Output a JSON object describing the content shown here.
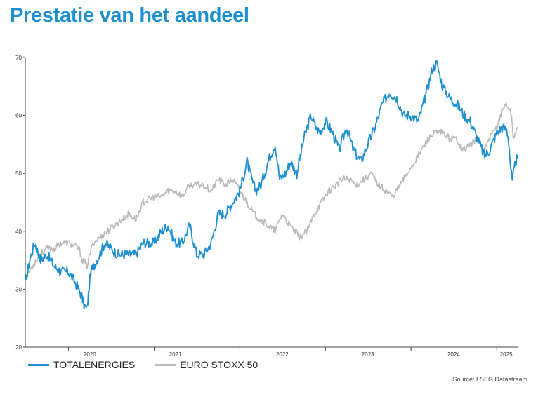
{
  "title": "Prestatie van het aandeel",
  "source": "Source: LSEG Datastream",
  "colors": {
    "title": "#1b8fd0",
    "total": "#1b8fd0",
    "stoxx": "#b9b9b9",
    "axis": "#444444"
  },
  "chart_data": {
    "type": "line",
    "title": "",
    "xlabel": "",
    "ylabel": "",
    "xlim": [
      "2019-07-01",
      "2025-03-31"
    ],
    "ylim": [
      20,
      70
    ],
    "yticks": [
      20,
      30,
      40,
      50,
      60,
      70
    ],
    "year_labels": [
      {
        "label": "2020",
        "date": "2020-04-01"
      },
      {
        "label": "2021",
        "date": "2021-04-01"
      },
      {
        "label": "2022",
        "date": "2022-07-01"
      },
      {
        "label": "2023",
        "date": "2023-07-01"
      },
      {
        "label": "2024",
        "date": "2024-07-01"
      },
      {
        "label": "2025",
        "date": "2025-02-10"
      }
    ],
    "year_boundaries": [
      "2020-01-01",
      "2021-01-01",
      "2022-01-01",
      "2023-01-01",
      "2024-01-01",
      "2025-01-01"
    ],
    "legend_position": "bottom-left",
    "series": [
      {
        "name": "TOTALENERGIES",
        "color": "#1b8fd0",
        "points": [
          [
            "2019-07-01",
            31
          ],
          [
            "2019-07-20",
            35
          ],
          [
            "2019-08-10",
            38
          ],
          [
            "2019-09-05",
            35
          ],
          [
            "2019-10-01",
            36
          ],
          [
            "2019-11-01",
            34
          ],
          [
            "2019-12-01",
            33
          ],
          [
            "2020-01-01",
            33
          ],
          [
            "2020-02-01",
            31
          ],
          [
            "2020-02-25",
            29
          ],
          [
            "2020-03-10",
            27
          ],
          [
            "2020-03-20",
            26.5
          ],
          [
            "2020-04-05",
            33
          ],
          [
            "2020-05-01",
            35
          ],
          [
            "2020-06-05",
            38
          ],
          [
            "2020-07-01",
            37
          ],
          [
            "2020-08-01",
            36
          ],
          [
            "2020-09-01",
            36
          ],
          [
            "2020-10-15",
            36
          ],
          [
            "2020-11-15",
            38
          ],
          [
            "2021-01-01",
            38
          ],
          [
            "2021-02-01",
            40
          ],
          [
            "2021-03-01",
            41
          ],
          [
            "2021-04-01",
            38
          ],
          [
            "2021-05-01",
            38
          ],
          [
            "2021-06-01",
            41
          ],
          [
            "2021-07-01",
            36
          ],
          [
            "2021-08-01",
            36
          ],
          [
            "2021-09-01",
            38
          ],
          [
            "2021-10-01",
            43
          ],
          [
            "2021-11-01",
            43
          ],
          [
            "2021-12-01",
            45
          ],
          [
            "2022-01-01",
            47
          ],
          [
            "2022-02-01",
            52
          ],
          [
            "2022-02-20",
            49
          ],
          [
            "2022-03-10",
            47
          ],
          [
            "2022-04-01",
            48
          ],
          [
            "2022-05-01",
            52
          ],
          [
            "2022-05-20",
            54
          ],
          [
            "2022-06-01",
            55
          ],
          [
            "2022-06-20",
            49
          ],
          [
            "2022-07-15",
            50
          ],
          [
            "2022-08-05",
            52
          ],
          [
            "2022-09-01",
            50
          ],
          [
            "2022-10-01",
            56
          ],
          [
            "2022-11-01",
            60
          ],
          [
            "2022-11-20",
            58
          ],
          [
            "2022-12-10",
            57
          ],
          [
            "2023-01-01",
            59
          ],
          [
            "2023-02-01",
            57
          ],
          [
            "2023-03-01",
            54
          ],
          [
            "2023-04-01",
            58
          ],
          [
            "2023-05-01",
            54
          ],
          [
            "2023-06-01",
            52
          ],
          [
            "2023-07-01",
            55
          ],
          [
            "2023-08-01",
            58
          ],
          [
            "2023-09-01",
            62
          ],
          [
            "2023-10-01",
            64
          ],
          [
            "2023-11-01",
            63
          ],
          [
            "2023-12-01",
            60
          ],
          [
            "2024-01-01",
            60
          ],
          [
            "2024-02-01",
            59
          ],
          [
            "2024-03-01",
            63
          ],
          [
            "2024-04-01",
            68
          ],
          [
            "2024-04-20",
            69
          ],
          [
            "2024-05-15",
            65
          ],
          [
            "2024-06-15",
            63
          ],
          [
            "2024-07-15",
            62
          ],
          [
            "2024-08-15",
            60
          ],
          [
            "2024-09-10",
            59
          ],
          [
            "2024-10-10",
            56
          ],
          [
            "2024-11-10",
            53
          ],
          [
            "2024-12-01",
            54
          ],
          [
            "2025-01-01",
            57
          ],
          [
            "2025-01-25",
            58
          ],
          [
            "2025-02-12",
            57.5
          ],
          [
            "2025-02-20",
            56
          ],
          [
            "2025-03-01",
            51
          ],
          [
            "2025-03-08",
            48.5
          ],
          [
            "2025-03-14",
            50
          ],
          [
            "2025-03-22",
            52
          ],
          [
            "2025-03-30",
            52.5
          ]
        ]
      },
      {
        "name": "EURO STOXX 50",
        "color": "#b9b9b9",
        "points": [
          [
            "2019-07-01",
            32
          ],
          [
            "2019-08-01",
            34
          ],
          [
            "2019-09-01",
            36
          ],
          [
            "2019-10-01",
            37
          ],
          [
            "2019-11-01",
            37
          ],
          [
            "2019-12-01",
            38
          ],
          [
            "2020-01-01",
            38
          ],
          [
            "2020-02-15",
            37
          ],
          [
            "2020-03-01",
            35
          ],
          [
            "2020-03-20",
            34
          ],
          [
            "2020-04-15",
            38
          ],
          [
            "2020-05-15",
            39
          ],
          [
            "2020-06-15",
            40
          ],
          [
            "2020-07-15",
            41
          ],
          [
            "2020-08-15",
            42
          ],
          [
            "2020-09-15",
            43
          ],
          [
            "2020-10-15",
            42
          ],
          [
            "2020-11-15",
            45
          ],
          [
            "2021-01-01",
            46
          ],
          [
            "2021-02-01",
            46
          ],
          [
            "2021-03-01",
            47
          ],
          [
            "2021-04-01",
            47
          ],
          [
            "2021-05-01",
            46
          ],
          [
            "2021-06-01",
            48
          ],
          [
            "2021-07-01",
            48
          ],
          [
            "2021-08-01",
            48
          ],
          [
            "2021-09-01",
            47
          ],
          [
            "2021-10-01",
            49
          ],
          [
            "2021-11-01",
            48
          ],
          [
            "2021-12-01",
            49
          ],
          [
            "2022-01-01",
            47
          ],
          [
            "2022-02-01",
            45
          ],
          [
            "2022-03-01",
            43
          ],
          [
            "2022-04-01",
            42
          ],
          [
            "2022-05-01",
            41
          ],
          [
            "2022-06-01",
            40
          ],
          [
            "2022-07-01",
            43
          ],
          [
            "2022-08-01",
            41
          ],
          [
            "2022-09-15",
            39
          ],
          [
            "2022-10-15",
            40
          ],
          [
            "2022-11-15",
            43
          ],
          [
            "2022-12-15",
            45
          ],
          [
            "2023-01-15",
            47
          ],
          [
            "2023-02-15",
            48
          ],
          [
            "2023-03-15",
            49
          ],
          [
            "2023-04-15",
            49
          ],
          [
            "2023-05-15",
            48
          ],
          [
            "2023-06-15",
            49
          ],
          [
            "2023-07-15",
            50
          ],
          [
            "2023-08-15",
            48
          ],
          [
            "2023-09-15",
            47
          ],
          [
            "2023-10-15",
            46
          ],
          [
            "2023-11-15",
            48
          ],
          [
            "2023-12-15",
            50
          ],
          [
            "2024-01-15",
            52
          ],
          [
            "2024-02-15",
            54
          ],
          [
            "2024-03-15",
            56
          ],
          [
            "2024-04-15",
            57
          ],
          [
            "2024-05-15",
            57
          ],
          [
            "2024-06-15",
            56
          ],
          [
            "2024-07-15",
            56
          ],
          [
            "2024-08-10",
            54
          ],
          [
            "2024-09-10",
            55
          ],
          [
            "2024-10-10",
            56
          ],
          [
            "2024-11-10",
            54
          ],
          [
            "2024-12-01",
            56
          ],
          [
            "2025-01-01",
            58
          ],
          [
            "2025-01-25",
            61
          ],
          [
            "2025-02-10",
            62
          ],
          [
            "2025-02-25",
            61
          ],
          [
            "2025-03-05",
            60
          ],
          [
            "2025-03-12",
            56
          ],
          [
            "2025-03-20",
            57
          ],
          [
            "2025-03-30",
            58
          ]
        ]
      }
    ]
  }
}
